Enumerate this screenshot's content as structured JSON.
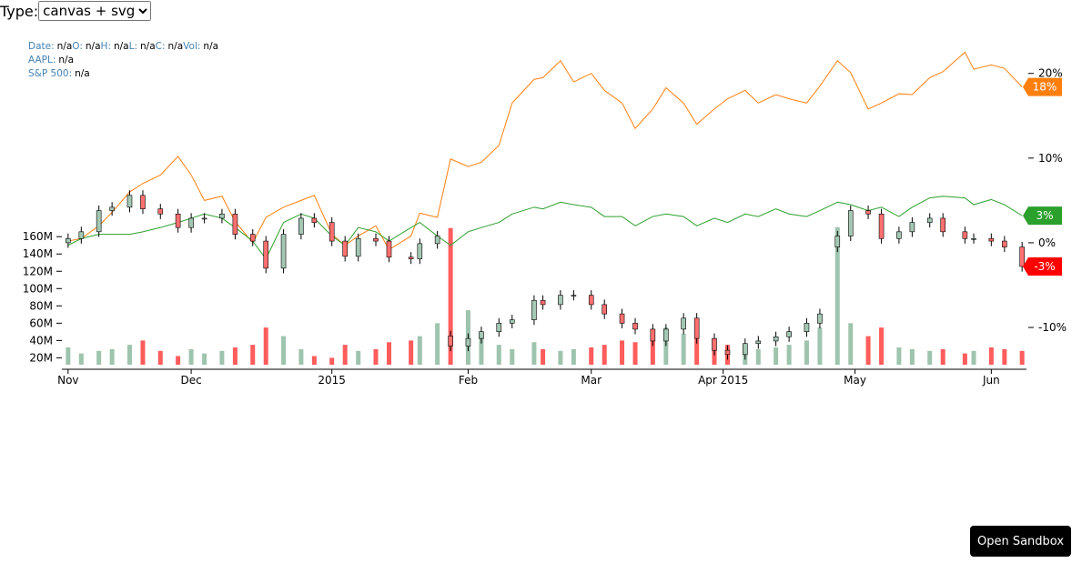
{
  "controls": {
    "type_label": "Type:",
    "type_select": "canvas + svg",
    "sandbox_button": "Open Sandbox"
  },
  "chart_data": {
    "type": "candlestick",
    "tooltip": [
      {
        "label": "Date:",
        "value": "n/a"
      },
      {
        "label": "O:",
        "value": "n/a"
      },
      {
        "label": "H:",
        "value": "n/a"
      },
      {
        "label": "L:",
        "value": "n/a"
      },
      {
        "label": "C:",
        "value": "n/a"
      },
      {
        "label": "Vol:",
        "value": "n/a"
      }
    ],
    "x": [
      "2014-11-03",
      "2014-11-06",
      "2014-11-10",
      "2014-11-13",
      "2014-11-17",
      "2014-11-20",
      "2014-11-24",
      "2014-11-28",
      "2014-12-01",
      "2014-12-04",
      "2014-12-08",
      "2014-12-11",
      "2014-12-15",
      "2014-12-18",
      "2014-12-22",
      "2014-12-26",
      "2014-12-29",
      "2015-01-02",
      "2015-01-05",
      "2015-01-08",
      "2015-01-12",
      "2015-01-15",
      "2015-01-20",
      "2015-01-22",
      "2015-01-26",
      "2015-01-29",
      "2015-02-02",
      "2015-02-05",
      "2015-02-09",
      "2015-02-12",
      "2015-02-17",
      "2015-02-19",
      "2015-02-23",
      "2015-02-26",
      "2015-03-02",
      "2015-03-05",
      "2015-03-09",
      "2015-03-12",
      "2015-03-16",
      "2015-03-19",
      "2015-03-23",
      "2015-03-26",
      "2015-03-30",
      "2015-04-02",
      "2015-04-06",
      "2015-04-09",
      "2015-04-13",
      "2015-04-16",
      "2015-04-20",
      "2015-04-23",
      "2015-04-27",
      "2015-04-30",
      "2015-05-04",
      "2015-05-07",
      "2015-05-11",
      "2015-05-14",
      "2015-05-18",
      "2015-05-21",
      "2015-05-26",
      "2015-05-28",
      "2015-06-01",
      "2015-06-04",
      "2015-06-08"
    ],
    "xlim": [
      "2014-11-02",
      "2015-06-09"
    ],
    "xticks": [
      {
        "value": "2014-11-03",
        "label": "Nov"
      },
      {
        "value": "2014-12-01",
        "label": "Dec"
      },
      {
        "value": "2015-01-02",
        "label": "2015"
      },
      {
        "value": "2015-02-02",
        "label": "Feb"
      },
      {
        "value": "2015-03-02",
        "label": "Mar"
      },
      {
        "value": "2015-04-01",
        "label": "Apr 2015"
      },
      {
        "value": "2015-05-01",
        "label": "May"
      },
      {
        "value": "2015-06-01",
        "label": "Jun"
      }
    ],
    "ohlc": {
      "open": [
        0.0,
        0.5,
        1.3,
        3.8,
        4.2,
        5.6,
        4.0,
        3.4,
        1.8,
        2.9,
        2.9,
        3.4,
        1.0,
        0.2,
        -3.0,
        1.0,
        2.9,
        2.4,
        0.2,
        -1.6,
        0.5,
        0.2,
        -1.7,
        -1.9,
        -0.1,
        -11.0,
        -12.2,
        -11.3,
        -10.5,
        -9.5,
        -9.1,
        -6.8,
        -7.3,
        -6.2,
        -6.2,
        -7.3,
        -8.4,
        -9.5,
        -10.2,
        -11.6,
        -10.2,
        -8.9,
        -11.3,
        -12.7,
        -13.2,
        -11.9,
        -11.6,
        -11.1,
        -10.5,
        -9.5,
        -0.5,
        0.8,
        3.8,
        3.4,
        0.5,
        1.3,
        2.4,
        2.9,
        1.3,
        0.5,
        0.5,
        0.2,
        -0.5
      ],
      "high": [
        1.1,
        1.9,
        4.4,
        4.8,
        6.2,
        6.2,
        4.6,
        4.0,
        3.5,
        3.5,
        4.0,
        4.0,
        1.6,
        0.8,
        1.6,
        3.5,
        3.5,
        3.0,
        0.8,
        1.1,
        1.1,
        0.8,
        -1.1,
        0.5,
        1.4,
        -10.4,
        -10.7,
        -9.9,
        -8.9,
        -8.5,
        -6.2,
        -6.2,
        -5.6,
        -5.6,
        -5.6,
        -6.7,
        -7.8,
        -8.9,
        -9.6,
        -9.6,
        -8.3,
        -8.3,
        -10.7,
        -12.1,
        -11.3,
        -11.0,
        -10.5,
        -9.9,
        -8.9,
        -7.8,
        1.4,
        4.4,
        4.4,
        4.0,
        1.9,
        3.0,
        3.5,
        3.5,
        1.9,
        1.1,
        1.1,
        0.8,
        0.1
      ],
      "low": [
        -0.6,
        -0.1,
        0.7,
        3.2,
        3.6,
        3.4,
        2.8,
        1.2,
        1.2,
        2.3,
        2.3,
        0.4,
        -0.4,
        -3.6,
        -3.6,
        0.4,
        1.8,
        -0.4,
        -2.2,
        -2.2,
        -0.4,
        -2.3,
        -2.5,
        -2.5,
        -0.7,
        -12.8,
        -12.8,
        -11.9,
        -11.1,
        -10.1,
        -9.7,
        -7.9,
        -7.9,
        -6.8,
        -7.9,
        -9.0,
        -10.1,
        -10.8,
        -12.2,
        -12.2,
        -10.8,
        -11.9,
        -13.3,
        -13.8,
        -13.8,
        -12.5,
        -12.2,
        -11.7,
        -11.1,
        -10.1,
        -1.1,
        0.2,
        2.8,
        -0.1,
        -0.1,
        0.7,
        1.8,
        0.7,
        -0.1,
        -0.1,
        -0.4,
        -1.1,
        -3.4
      ],
      "close": [
        0.5,
        1.3,
        3.8,
        4.2,
        5.6,
        4.0,
        3.4,
        1.8,
        2.9,
        2.9,
        3.4,
        1.0,
        0.2,
        -3.0,
        1.0,
        2.9,
        2.4,
        0.2,
        -1.6,
        0.5,
        0.2,
        -1.7,
        -1.9,
        -0.1,
        0.8,
        -12.2,
        -11.3,
        -10.5,
        -9.5,
        -9.1,
        -6.8,
        -7.3,
        -6.2,
        -6.2,
        -7.3,
        -8.4,
        -9.5,
        -10.2,
        -11.6,
        -10.2,
        -8.9,
        -11.3,
        -12.7,
        -13.2,
        -11.9,
        -11.6,
        -11.1,
        -10.5,
        -9.5,
        -8.4,
        0.8,
        3.8,
        3.4,
        0.5,
        1.3,
        2.4,
        2.9,
        1.3,
        0.5,
        0.5,
        0.2,
        -0.5,
        -2.8
      ],
      "up_color": "#a4c8b4",
      "down_color": "#ff7070",
      "last_color": "#ff0000",
      "last_label": "-3%"
    },
    "volume": {
      "values": [
        32000000,
        25000000,
        28000000,
        30000000,
        35000000,
        40000000,
        28000000,
        22000000,
        30000000,
        25000000,
        28000000,
        32000000,
        35000000,
        55000000,
        45000000,
        30000000,
        22000000,
        20000000,
        35000000,
        28000000,
        30000000,
        38000000,
        40000000,
        45000000,
        60000000,
        170000000,
        75000000,
        45000000,
        35000000,
        30000000,
        38000000,
        30000000,
        28000000,
        30000000,
        32000000,
        35000000,
        40000000,
        38000000,
        45000000,
        55000000,
        48000000,
        42000000,
        38000000,
        35000000,
        32000000,
        30000000,
        32000000,
        35000000,
        40000000,
        55000000,
        171000000,
        60000000,
        45000000,
        55000000,
        32000000,
        30000000,
        28000000,
        30000000,
        25000000,
        28000000,
        32000000,
        30000000,
        28000000
      ],
      "up_color": "#9ec4ae",
      "down_color": "#ff5c5c",
      "ylim": [
        12000000,
        381000000
      ],
      "yticks": [
        {
          "value": 20000000,
          "label": "20M"
        },
        {
          "value": 40000000,
          "label": "40M"
        },
        {
          "value": 60000000,
          "label": "60M"
        },
        {
          "value": 80000000,
          "label": "80M"
        },
        {
          "value": 100000000,
          "label": "100M"
        },
        {
          "value": 120000000,
          "label": "120M"
        },
        {
          "value": 140000000,
          "label": "140M"
        },
        {
          "value": 160000000,
          "label": "160M"
        }
      ]
    },
    "series": [
      {
        "label": "AAPL:",
        "tooltip_value": "n/a",
        "color": "#ff7f0e",
        "last_label": "18%",
        "values": [
          0.2,
          0.5,
          2.0,
          3.6,
          6.0,
          7.0,
          8.0,
          10.2,
          8.0,
          5.0,
          5.5,
          2.5,
          0.0,
          3.0,
          4.2,
          5.0,
          5.6,
          1.0,
          -0.3,
          0.8,
          2.0,
          -0.8,
          0.8,
          3.5,
          3.0,
          9.9,
          9.0,
          9.5,
          11.5,
          16.5,
          19.3,
          19.5,
          21.5,
          19.0,
          20.0,
          18.0,
          16.5,
          13.5,
          15.8,
          18.3,
          16.5,
          14.0,
          15.8,
          17.0,
          18.0,
          16.5,
          17.5,
          17.0,
          16.5,
          18.5,
          21.5,
          20.1,
          15.8,
          16.5,
          17.6,
          17.5,
          19.5,
          20.2,
          22.5,
          20.5,
          21.0,
          20.6,
          18.4
        ]
      },
      {
        "label": "S&P 500:",
        "tooltip_value": "n/a",
        "color": "#2ca02c",
        "last_label": "3%",
        "values": [
          -0.3,
          0.5,
          1.0,
          1.0,
          1.0,
          1.3,
          1.8,
          2.4,
          2.9,
          3.4,
          2.9,
          1.8,
          0.2,
          -1.9,
          2.4,
          3.4,
          2.9,
          0.8,
          -0.3,
          1.8,
          1.3,
          0.2,
          1.8,
          2.4,
          0.8,
          -0.3,
          1.3,
          1.8,
          2.4,
          3.4,
          4.2,
          4.0,
          4.8,
          4.5,
          4.2,
          3.1,
          3.1,
          2.0,
          3.1,
          3.4,
          3.1,
          2.0,
          2.9,
          2.4,
          3.4,
          3.1,
          4.0,
          3.4,
          3.1,
          3.8,
          4.8,
          4.5,
          3.8,
          4.2,
          3.1,
          4.2,
          5.3,
          5.5,
          5.3,
          4.5,
          5.1,
          4.5,
          3.2
        ]
      }
    ],
    "ylim": [
      -14.4,
      23.3
    ],
    "yticks": [
      {
        "value": -10,
        "label": "-10%"
      },
      {
        "value": 0,
        "label": "0%"
      },
      {
        "value": 10,
        "label": "10%"
      },
      {
        "value": 20,
        "label": "20%"
      }
    ]
  }
}
